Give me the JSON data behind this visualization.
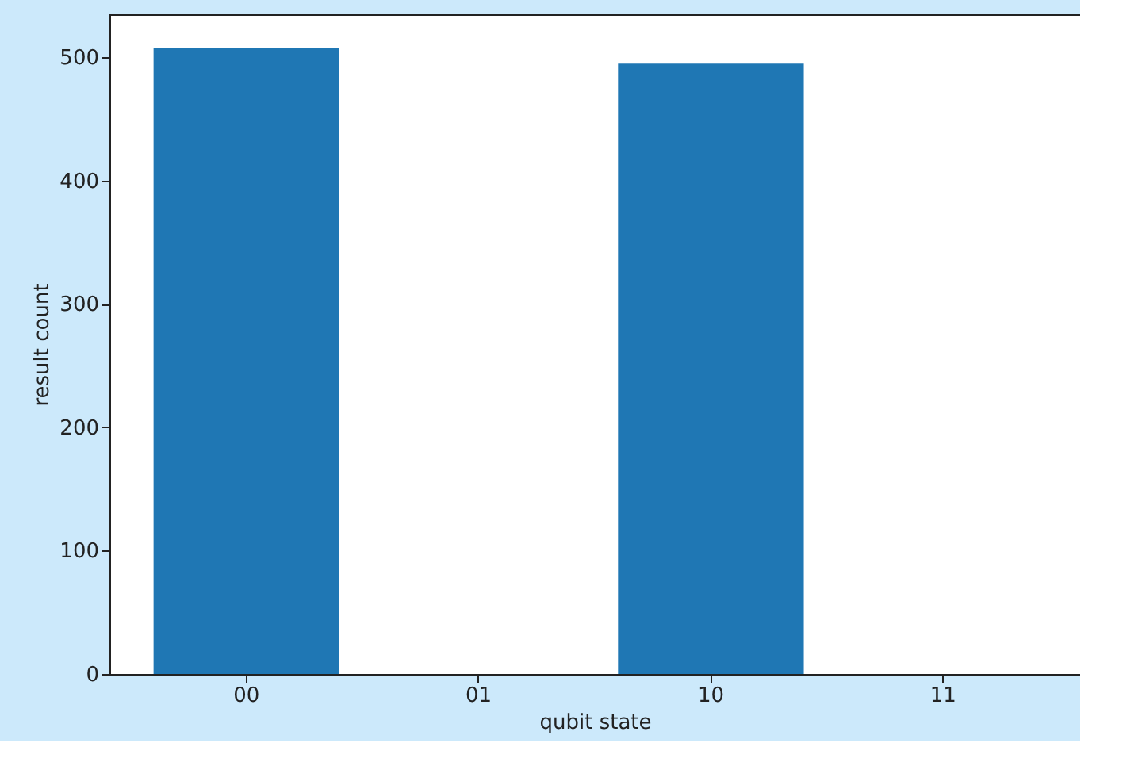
{
  "chart_data": {
    "type": "bar",
    "xlabel": "qubit state",
    "ylabel": "result count",
    "categories": [
      "00",
      "01",
      "10",
      "11"
    ],
    "values": [
      508,
      0,
      495,
      0
    ],
    "color": "#1f77b4",
    "ylim": [
      0,
      535
    ],
    "yticks": [
      0,
      100,
      200,
      300,
      400,
      500
    ],
    "grid": false
  }
}
